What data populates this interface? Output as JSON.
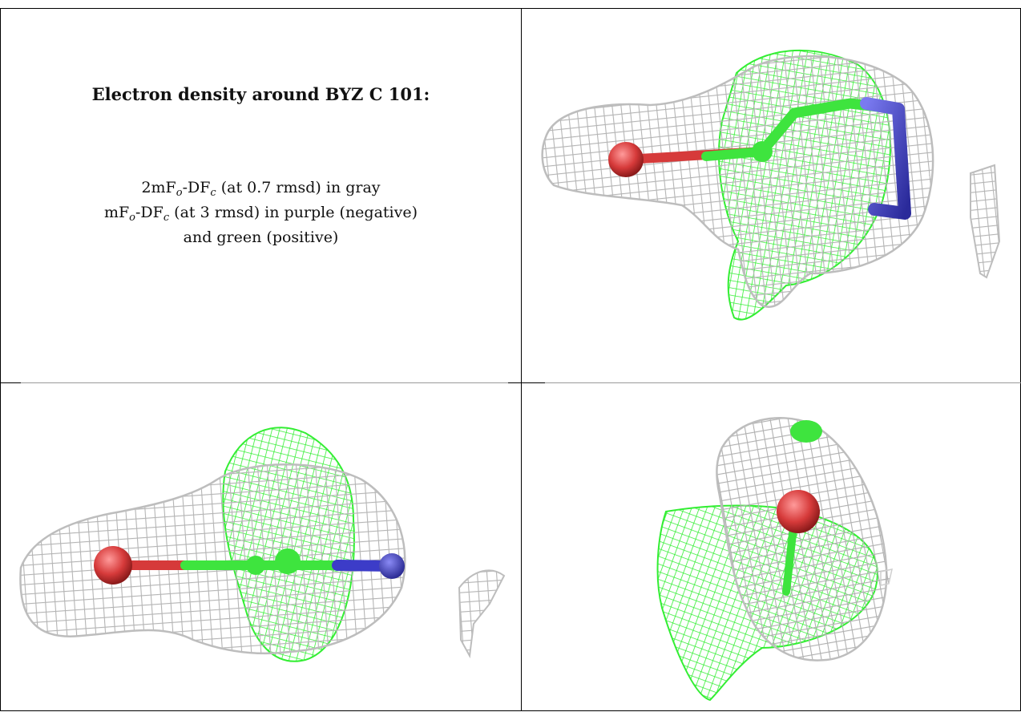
{
  "caption": {
    "title": "Electron density around BYZ C 101:",
    "line1": {
      "pre": "2mF",
      "sub1": "o",
      "mid": "-DF",
      "sub2": "c",
      "post": " (at 0.7 rmsd) in gray"
    },
    "line2": {
      "pre": "mF",
      "sub1": "o",
      "mid": "-DF",
      "sub2": "c",
      "post": " (at 3 rmsd) in purple (negative)"
    },
    "line3": "and green (positive)"
  },
  "colors": {
    "mesh_2fofc": "#b8b8b8",
    "mesh_positive": "#33ff33",
    "mesh_negative": "#4a4ad0",
    "oxygen": "#d63a3a",
    "carbon": "#3ee43e",
    "nitrogen": "#3c3cc8"
  },
  "panels": [
    {
      "view": "top-right"
    },
    {
      "view": "bottom-left"
    },
    {
      "view": "bottom-right"
    }
  ]
}
